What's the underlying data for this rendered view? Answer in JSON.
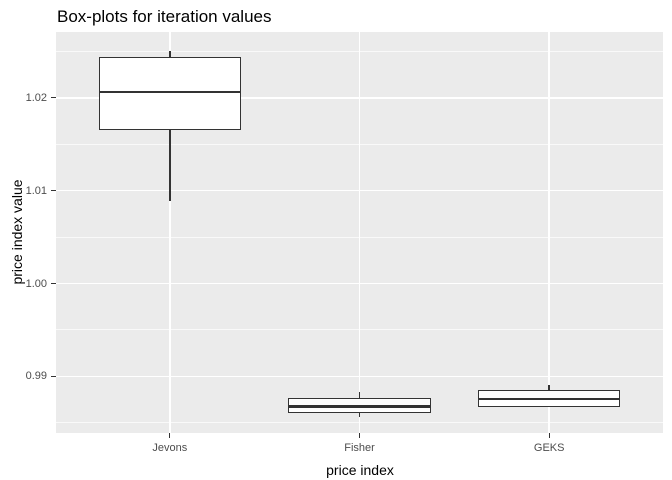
{
  "title": "Box-plots for iteration values",
  "x_axis": {
    "title": "price index",
    "tick_labels": [
      "Jevons",
      "Fisher",
      "GEKS"
    ]
  },
  "y_axis": {
    "title": "price index value",
    "tick_labels": [
      "0.99",
      "1.00",
      "1.01",
      "1.02"
    ]
  },
  "colors": {
    "panel_bg": "#EBEBEB",
    "grid_major": "#FFFFFF",
    "grid_minor": "rgba(255,255,255,0.7)",
    "box_stroke": "#333333",
    "box_fill": "#FFFFFF",
    "tick_mark": "#333333",
    "tick_label": "#4D4D4D",
    "title_text": "#000000"
  },
  "chart_data": {
    "type": "boxplot",
    "title": "Box-plots for iteration values",
    "xlabel": "price index",
    "ylabel": "price index value",
    "categories": [
      "Jevons",
      "Fisher",
      "GEKS"
    ],
    "y_domain": [
      0.9839,
      1.0271
    ],
    "y_major_ticks": [
      0.99,
      1.0,
      1.01,
      1.02
    ],
    "y_major_tick_labels": [
      "0.99",
      "1.00",
      "1.01",
      "1.02"
    ],
    "y_minor_ticks": [
      0.985,
      0.995,
      1.005,
      1.015,
      1.025
    ],
    "grid": true,
    "legend": false,
    "series": [
      {
        "name": "Jevons",
        "min": 1.0089,
        "q1": 1.0165,
        "median": 1.0206,
        "q3": 1.0244,
        "max": 1.0251
      },
      {
        "name": "Fisher",
        "min": 0.9856,
        "q1": 0.9861,
        "median": 0.9867,
        "q3": 0.9877,
        "max": 0.9883
      },
      {
        "name": "GEKS",
        "min": 0.9867,
        "q1": 0.9867,
        "median": 0.9875,
        "q3": 0.9885,
        "max": 0.9891
      }
    ]
  }
}
